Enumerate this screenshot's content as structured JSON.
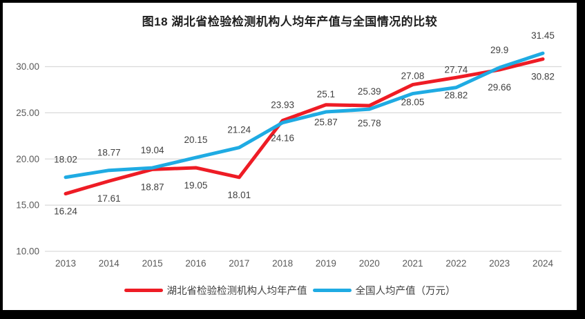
{
  "chart_data": {
    "type": "line",
    "title": "图18  湖北省检验检测机构人均年产值与全国情况的比较",
    "categories": [
      "2013",
      "2014",
      "2015",
      "2016",
      "2017",
      "2018",
      "2019",
      "2020",
      "2021",
      "2022",
      "2023",
      "2024"
    ],
    "series": [
      {
        "name": "湖北省检验检测机构人均年产值",
        "color": "#ee1c25",
        "label_position": "below",
        "values": [
          "16.24",
          "17.61",
          "18.87",
          "19.05",
          "18.01",
          "24.16",
          "25.87",
          "25.78",
          "28.05",
          "28.82",
          "29.66",
          "30.82"
        ]
      },
      {
        "name": "全国人均产值（万元）",
        "color": "#1fabe3",
        "label_position": "above",
        "values": [
          "18.02",
          "18.77",
          "19.04",
          "20.15",
          "21.24",
          "23.93",
          "25.1",
          "25.39",
          "27.08",
          "27.74",
          "29.9",
          "31.45"
        ]
      }
    ],
    "y_axis": {
      "ticks": [
        "10.00",
        "15.00",
        "20.00",
        "25.00",
        "30.00"
      ],
      "ylim": [
        10,
        32.5
      ]
    },
    "xlabel": "",
    "ylabel": "",
    "grid": true,
    "grid_color": "#d9d9d9",
    "legend_position": "bottom"
  }
}
